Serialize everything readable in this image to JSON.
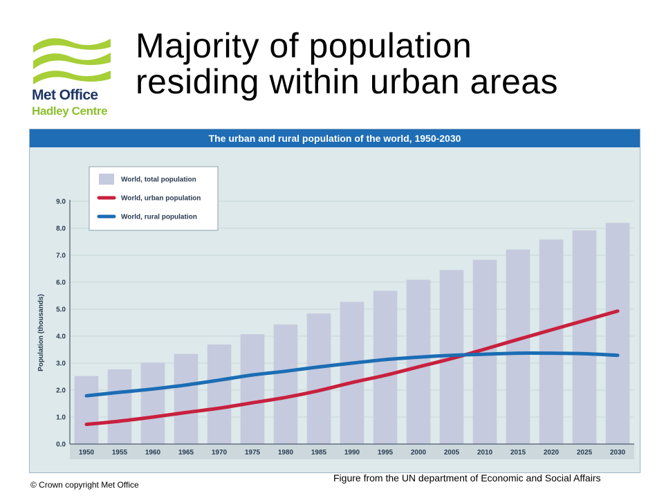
{
  "slide": {
    "title_line1": "Majority of population",
    "title_line2": "residing within urban areas",
    "footer_left": "© Crown  copyright   Met Office",
    "footer_right": "Figure from the UN department of Economic and Social Affairs"
  },
  "logo": {
    "line1": "Met Office",
    "line2": "Hadley Centre",
    "colors": {
      "waves": "#a6cf38",
      "line1": "#1f3564",
      "line2": "#8dbf2e"
    }
  },
  "colors": {
    "header": "#1e6db5",
    "panel": "#dde9ea",
    "bars": "#c5cade",
    "urban": "#c8203e",
    "rural": "#1b6db4"
  },
  "chart_data": {
    "type": "bar",
    "title": "The urban and rural population of the world, 1950-2030",
    "ylabel": "Population (thousands)",
    "xlabel": "",
    "ylim": [
      0,
      9
    ],
    "yticks": [
      "0.0",
      "1.0",
      "2.0",
      "3.0",
      "4.0",
      "5.0",
      "6.0",
      "7.0",
      "8.0",
      "9.0"
    ],
    "categories": [
      "1950",
      "1955",
      "1960",
      "1965",
      "1970",
      "1975",
      "1980",
      "1985",
      "1990",
      "1995",
      "2000",
      "2005",
      "2010",
      "2015",
      "2020",
      "2025",
      "2030"
    ],
    "legend_position": "top-left",
    "series": [
      {
        "name": "World, total population",
        "type": "bar",
        "values": [
          2.52,
          2.77,
          3.02,
          3.34,
          3.69,
          4.07,
          4.43,
          4.84,
          5.27,
          5.68,
          6.09,
          6.45,
          6.83,
          7.21,
          7.58,
          7.92,
          8.2
        ]
      },
      {
        "name": "World, urban population",
        "type": "line",
        "values": [
          0.73,
          0.85,
          1.0,
          1.17,
          1.33,
          1.53,
          1.73,
          1.98,
          2.28,
          2.55,
          2.86,
          3.17,
          3.52,
          3.88,
          4.23,
          4.58,
          4.93
        ]
      },
      {
        "name": "World, rural population",
        "type": "line",
        "values": [
          1.79,
          1.92,
          2.04,
          2.19,
          2.37,
          2.56,
          2.7,
          2.86,
          3.0,
          3.13,
          3.22,
          3.29,
          3.33,
          3.37,
          3.37,
          3.35,
          3.29
        ]
      }
    ]
  }
}
